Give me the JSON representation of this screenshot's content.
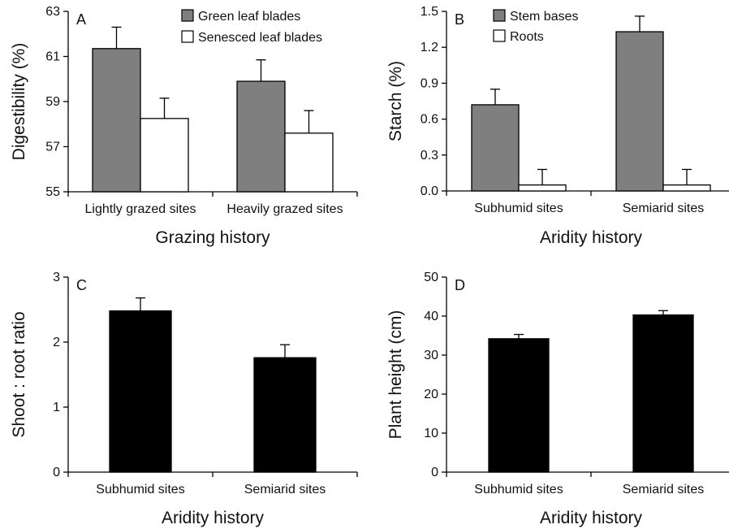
{
  "chart_data": [
    {
      "panel": "A",
      "type": "bar",
      "categories": [
        "Lightly grazed sites",
        "Heavily grazed sites"
      ],
      "series": [
        {
          "name": "Green leaf blades",
          "values": [
            61.35,
            59.9
          ],
          "errors": [
            0.95,
            0.95
          ],
          "color": "#7f7f7f"
        },
        {
          "name": "Senesced leaf blades",
          "values": [
            58.25,
            57.6
          ],
          "errors": [
            0.9,
            1.0
          ],
          "color": "#ffffff"
        }
      ],
      "xlabel": "Grazing history",
      "ylabel": "Digestibility (%)",
      "ylim": [
        55,
        63
      ],
      "yticks": [
        "55",
        "57",
        "59",
        "61",
        "63"
      ],
      "legend": "top-right",
      "grid": false
    },
    {
      "panel": "B",
      "type": "bar",
      "categories": [
        "Subhumid sites",
        "Semiarid sites"
      ],
      "series": [
        {
          "name": "Stem bases",
          "values": [
            0.72,
            1.33
          ],
          "errors": [
            0.13,
            0.13
          ],
          "color": "#7f7f7f"
        },
        {
          "name": "Roots",
          "values": [
            0.05,
            0.05
          ],
          "errors": [
            0.13,
            0.13
          ],
          "color": "#ffffff"
        }
      ],
      "xlabel": "Aridity history",
      "ylabel": "Starch (%)",
      "ylim": [
        0,
        1.5
      ],
      "yticks": [
        "0.0",
        "0.3",
        "0.6",
        "0.9",
        "1.2",
        "1.5"
      ],
      "legend": "top-left",
      "grid": false
    },
    {
      "panel": "C",
      "type": "bar",
      "categories": [
        "Subhumid sites",
        "Semiarid sites"
      ],
      "series": [
        {
          "values": [
            2.48,
            1.76
          ],
          "errors": [
            0.2,
            0.2
          ],
          "color": "#000000"
        }
      ],
      "xlabel": "Aridity history",
      "ylabel": "Shoot : root ratio",
      "ylim": [
        0,
        3
      ],
      "yticks": [
        "0",
        "1",
        "2",
        "3"
      ],
      "grid": false
    },
    {
      "panel": "D",
      "type": "bar",
      "categories": [
        "Subhumid sites",
        "Semiarid sites"
      ],
      "series": [
        {
          "values": [
            34.2,
            40.3
          ],
          "errors": [
            1.1,
            1.1
          ],
          "color": "#000000"
        }
      ],
      "xlabel": "Aridity history",
      "ylabel": "Plant height (cm)",
      "ylim": [
        0,
        50
      ],
      "yticks": [
        "0",
        "10",
        "20",
        "30",
        "40",
        "50"
      ],
      "grid": false
    }
  ]
}
